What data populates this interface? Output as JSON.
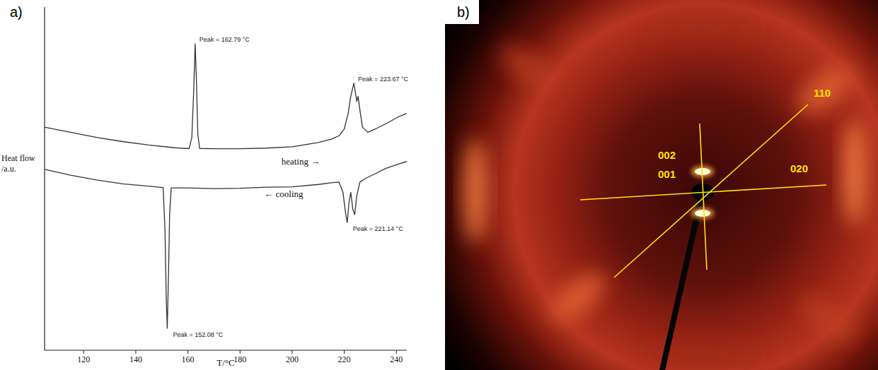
{
  "panel_labels": [
    "a)",
    "b)"
  ],
  "chart_data": {
    "type": "line",
    "x_label": "T/°C",
    "y_label": "Heat flow /a.u.",
    "xlim": [
      105,
      244
    ],
    "xticks": [
      120,
      140,
      160,
      180,
      200,
      220,
      240
    ],
    "ylim": [
      0,
      100
    ],
    "tick_labels": "x",
    "grid": false,
    "series": [
      {
        "name": "heating →",
        "color": "#333333",
        "line_style": "solid",
        "x": [
          105,
          115,
          125,
          135,
          145,
          155,
          159,
          160.5,
          161.5,
          162.2,
          162.79,
          163.3,
          163.8,
          164.5,
          170,
          180,
          190,
          200,
          210,
          215,
          218,
          220,
          221.5,
          222.5,
          223.67,
          224.3,
          224.8,
          225.3,
          226,
          227,
          229,
          232,
          236,
          241,
          244
        ],
        "values": [
          65.0,
          63.5,
          62.0,
          60.8,
          59.8,
          59.0,
          58.8,
          58.8,
          62,
          75,
          89.3,
          78,
          63,
          58.8,
          58.7,
          58.7,
          58.9,
          59.3,
          60.5,
          61.5,
          62.5,
          64.5,
          69,
          74,
          77.8,
          75,
          72.5,
          74,
          70,
          65,
          63.5,
          64.5,
          66,
          68.1,
          69
        ]
      },
      {
        "name": "← cooling",
        "color": "#333333",
        "line_style": "solid",
        "x": [
          105,
          115,
          125,
          135,
          145,
          149,
          150.5,
          151.2,
          151.7,
          152.08,
          152.5,
          153,
          153.6,
          160,
          170,
          180,
          190,
          200,
          210,
          215,
          218,
          219.5,
          220.5,
          221.14,
          221.8,
          222.5,
          223.3,
          224,
          224.8,
          226,
          228,
          232,
          236,
          241,
          244
        ],
        "values": [
          52.7,
          51.0,
          49.6,
          48.5,
          47.8,
          47.5,
          47.4,
          35,
          15,
          6.4,
          20,
          40,
          47.3,
          47.3,
          47.1,
          47.2,
          47.5,
          47.6,
          48.3,
          48.8,
          49,
          46,
          40,
          37.2,
          43,
          46,
          41,
          39.5,
          45,
          49,
          50,
          51.5,
          53,
          54.3,
          55
        ]
      }
    ],
    "annotations": [
      {
        "text": "Peak = 162.79 °C",
        "x": 162.79,
        "y": 89.3
      },
      {
        "text": "Peak = 223.67 °C",
        "x": 223.67,
        "y": 77.8
      },
      {
        "text": "Peak = 221.14 °C",
        "x": 221.14,
        "y": 37.2
      },
      {
        "text": "Peak = 152.08 °C",
        "x": 152.08,
        "y": 6.4
      }
    ]
  },
  "panel_b": {
    "reflections": [
      "110",
      "002",
      "001",
      "020"
    ]
  }
}
